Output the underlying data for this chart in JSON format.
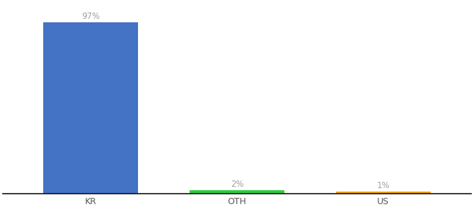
{
  "categories": [
    "KR",
    "OTH",
    "US"
  ],
  "values": [
    97,
    2,
    1
  ],
  "bar_colors": [
    "#4472c4",
    "#2ecc40",
    "#f0a500"
  ],
  "labels": [
    "97%",
    "2%",
    "1%"
  ],
  "label_color": "#a0a0a0",
  "tick_color": "#555555",
  "ylim": [
    0,
    108
  ],
  "background_color": "#ffffff",
  "bar_width": 0.65,
  "spine_color": "#111111",
  "label_fontsize": 8.5,
  "tick_fontsize": 9
}
